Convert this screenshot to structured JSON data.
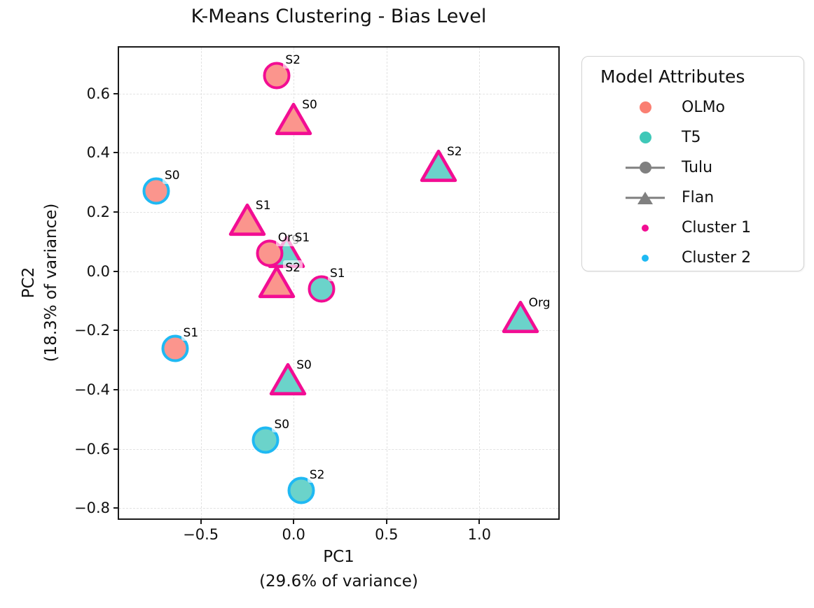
{
  "chart_data": {
    "type": "scatter",
    "title": "K-Means Clustering - Bias Level",
    "xlabel": "PC1",
    "xlabel_sub": "(29.6% of variance)",
    "ylabel": "PC2",
    "ylabel_sub": "(18.3% of variance)",
    "xlim": [
      -0.94,
      1.425
    ],
    "ylim": [
      -0.835,
      0.755
    ],
    "grid": true,
    "x_ticks": [
      {
        "value": -0.5,
        "label": "−0.5"
      },
      {
        "value": 0.0,
        "label": "0.0"
      },
      {
        "value": 0.5,
        "label": "0.5"
      },
      {
        "value": 1.0,
        "label": "1.0"
      }
    ],
    "y_ticks": [
      {
        "value": 0.6,
        "label": "0.6"
      },
      {
        "value": 0.4,
        "label": "0.4"
      },
      {
        "value": 0.2,
        "label": "0.2"
      },
      {
        "value": 0.0,
        "label": "0.0"
      },
      {
        "value": -0.2,
        "label": "−0.2"
      },
      {
        "value": -0.4,
        "label": "−0.4"
      },
      {
        "value": -0.6,
        "label": "−0.6"
      },
      {
        "value": -0.8,
        "label": "−0.8"
      }
    ],
    "colors": {
      "olmo_fill": "#FB958D",
      "olmo_legend": "#FA7F72",
      "t5_fill": "#6BD3CA",
      "t5_legend": "#3FC8B8",
      "cluster1": "#F20D93",
      "cluster2": "#1FB9F3",
      "gray": "#808080",
      "grid": "#e2e2e2"
    },
    "legend": {
      "title": "Model Attributes",
      "position": "upper right outside",
      "items": [
        {
          "label": "OLMo",
          "marker": "dot",
          "color_key": "olmo_legend"
        },
        {
          "label": "T5",
          "marker": "dot",
          "color_key": "t5_legend"
        },
        {
          "label": "Tulu",
          "marker": "line-circle",
          "color_key": "gray"
        },
        {
          "label": "Flan",
          "marker": "line-triangle",
          "color_key": "gray"
        },
        {
          "label": "Cluster 1",
          "marker": "ring",
          "color_key": "cluster1"
        },
        {
          "label": "Cluster 2",
          "marker": "ring",
          "color_key": "cluster2"
        }
      ]
    },
    "points": [
      {
        "label": "S2",
        "model": "OLMo",
        "fine_tune": "Tulu",
        "cluster": 1,
        "x": -0.09,
        "y": 0.66,
        "z": 10
      },
      {
        "label": "S0",
        "model": "OLMo",
        "fine_tune": "Flan",
        "cluster": 1,
        "x": 0.0,
        "y": 0.51,
        "z": 11
      },
      {
        "label": "S2",
        "model": "T5",
        "fine_tune": "Flan",
        "cluster": 1,
        "x": 0.78,
        "y": 0.35,
        "z": 12
      },
      {
        "label": "S0",
        "model": "OLMo",
        "fine_tune": "Tulu",
        "cluster": 2,
        "x": -0.74,
        "y": 0.27,
        "z": 13
      },
      {
        "label": "S1",
        "model": "OLMo",
        "fine_tune": "Flan",
        "cluster": 1,
        "x": -0.25,
        "y": 0.17,
        "z": 14
      },
      {
        "label": "Org",
        "model": "OLMo",
        "fine_tune": "Tulu",
        "cluster": 1,
        "x": -0.13,
        "y": 0.06,
        "z": 17
      },
      {
        "label": "S1",
        "model": "T5",
        "fine_tune": "Flan",
        "cluster": 1,
        "x": -0.04,
        "y": 0.06,
        "z": 16
      },
      {
        "label": "S2",
        "model": "OLMo",
        "fine_tune": "Flan",
        "cluster": 1,
        "x": -0.09,
        "y": -0.04,
        "z": 18
      },
      {
        "label": "S1",
        "model": "T5",
        "fine_tune": "Tulu",
        "cluster": 1,
        "x": 0.15,
        "y": -0.06,
        "z": 15
      },
      {
        "label": "Org",
        "model": "T5",
        "fine_tune": "Flan",
        "cluster": 1,
        "x": 1.22,
        "y": -0.16,
        "z": 10
      },
      {
        "label": "S1",
        "model": "OLMo",
        "fine_tune": "Tulu",
        "cluster": 2,
        "x": -0.64,
        "y": -0.26,
        "z": 10
      },
      {
        "label": "S0",
        "model": "T5",
        "fine_tune": "Flan",
        "cluster": 1,
        "x": -0.03,
        "y": -0.37,
        "z": 10
      },
      {
        "label": "S0",
        "model": "T5",
        "fine_tune": "Tulu",
        "cluster": 2,
        "x": -0.15,
        "y": -0.57,
        "z": 10
      },
      {
        "label": "S2",
        "model": "T5",
        "fine_tune": "Tulu",
        "cluster": 2,
        "x": 0.04,
        "y": -0.74,
        "z": 10
      }
    ]
  }
}
